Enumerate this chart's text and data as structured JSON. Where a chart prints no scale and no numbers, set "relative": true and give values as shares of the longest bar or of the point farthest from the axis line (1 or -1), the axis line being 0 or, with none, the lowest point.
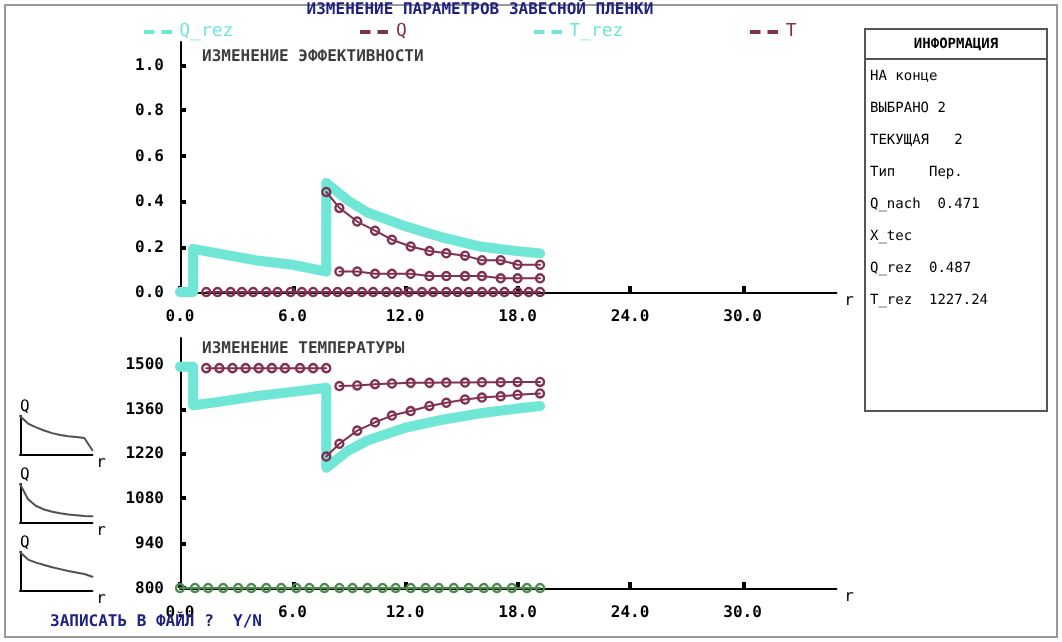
{
  "chart_data": [
    {
      "type": "line",
      "title": "ИЗМЕНЕНИЕ ПАРАМЕТРОВ ЗАВЕСНОЙ ПЛЕНКИ",
      "subtitle": "ИЗМЕНЕНИЕ ЭФФЕКТИВНОСТИ",
      "xlabel": "r",
      "legend": "top",
      "marker": "circle",
      "grid": false,
      "xlim": [
        0,
        35
      ],
      "xticks": [
        {
          "value": 0,
          "label": "0.0"
        },
        {
          "value": 6,
          "label": "6.0"
        },
        {
          "value": 12,
          "label": "12.0"
        },
        {
          "value": 18,
          "label": "18.0"
        },
        {
          "value": 24,
          "label": "24.0"
        },
        {
          "value": 30,
          "label": "30.0"
        }
      ],
      "ylim": [
        0,
        1.1
      ],
      "yticks": [
        {
          "value": 0,
          "label": "0.0"
        },
        {
          "value": 0.2,
          "label": "0.2"
        },
        {
          "value": 0.4,
          "label": "0.4"
        },
        {
          "value": 0.6,
          "label": "0.6"
        },
        {
          "value": 0.8,
          "label": "0.8"
        },
        {
          "value": 1,
          "label": "1.0"
        }
      ],
      "series": [
        {
          "name": "Q_rez",
          "color": "#70e6d6",
          "marker": "none",
          "x": [
            0,
            0.7,
            0.7,
            2,
            4,
            6,
            7.8,
            7.8,
            9,
            10,
            12,
            14,
            16,
            18,
            19.2
          ],
          "values": [
            0,
            0,
            0.19,
            0.17,
            0.14,
            0.12,
            0.09,
            0.48,
            0.4,
            0.35,
            0.29,
            0.24,
            0.2,
            0.18,
            0.17
          ]
        },
        {
          "name": "Q",
          "color": "#803050",
          "x": [
            7.8,
            8.5,
            9.45,
            10.4,
            11.3,
            12.3,
            13.3,
            14.2,
            15.2,
            16.1,
            17.1,
            18,
            19.2
          ],
          "values": [
            0.44,
            0.37,
            0.31,
            0.27,
            0.23,
            0.2,
            0.18,
            0.17,
            0.16,
            0.14,
            0.14,
            0.12,
            0.12
          ]
        },
        {
          "color": "#803050",
          "x": [
            8.5,
            9.45,
            10.4,
            11.3,
            12.3,
            13.3,
            14.2,
            15.2,
            16.1,
            17.1,
            18,
            19.2
          ],
          "values": [
            0.09,
            0.09,
            0.08,
            0.08,
            0.08,
            0.07,
            0.07,
            0.07,
            0.07,
            0.06,
            0.06,
            0.06
          ]
        },
        {
          "color": "#803050",
          "x": [
            1.4,
            2.0,
            2.7,
            3.3,
            3.9,
            4.6,
            5.2,
            5.9,
            6.5,
            7.1,
            7.8,
            8.4,
            9.0,
            9.7,
            10.3,
            11.0,
            11.6,
            12.2,
            12.9,
            13.5,
            14.2,
            14.8,
            15.4,
            16.1,
            16.7,
            17.3,
            18.0,
            18.6,
            19.2
          ],
          "values": [
            0,
            0,
            0,
            0,
            0,
            0,
            0,
            0,
            0,
            0,
            0,
            0,
            0,
            0,
            0,
            0,
            0,
            0,
            0,
            0,
            0,
            0,
            0,
            0,
            0,
            0,
            0,
            0,
            0
          ]
        }
      ]
    },
    {
      "type": "line",
      "title": "ИЗМЕНЕНИЕ ТЕМПЕРАТУРЫ",
      "xlabel": "r",
      "legend": "top",
      "marker": "circle",
      "grid": false,
      "annotations": [
        "ЗАПИСАТЬ В ФАЙЛ ?  Y/N"
      ],
      "xlim": [
        0,
        35
      ],
      "xticks": [
        {
          "value": 0,
          "label": "0.0"
        },
        {
          "value": 6,
          "label": "6.0"
        },
        {
          "value": 12,
          "label": "12.0"
        },
        {
          "value": 18,
          "label": "18.0"
        },
        {
          "value": 24,
          "label": "24.0"
        },
        {
          "value": 30,
          "label": "30.0"
        }
      ],
      "ylim": [
        800,
        1580
      ],
      "yticks": [
        800,
        940,
        1080,
        1220,
        1360,
        1500
      ],
      "series": [
        {
          "name": "T_rez",
          "color": "#70e6d6",
          "marker": "none",
          "x": [
            0,
            0.7,
            0.7,
            2,
            4,
            6,
            7.8,
            7.8,
            9,
            10,
            12,
            14,
            16,
            18,
            19.2
          ],
          "values": [
            1490,
            1490,
            1370,
            1380,
            1398,
            1412,
            1425,
            1175,
            1230,
            1260,
            1300,
            1325,
            1345,
            1360,
            1368
          ]
        },
        {
          "name": "T",
          "color": "#803050",
          "x": [
            1.4,
            2.1,
            2.8,
            3.5,
            4.2,
            4.9,
            5.6,
            6.4,
            7.1,
            7.8
          ],
          "values": [
            1486,
            1486,
            1486,
            1486,
            1486,
            1486,
            1486,
            1486,
            1486,
            1486
          ]
        },
        {
          "color": "#803050",
          "x": [
            8.5,
            9.45,
            10.4,
            11.3,
            12.3,
            13.3,
            14.2,
            15.2,
            16.1,
            17.1,
            18,
            19.2
          ],
          "values": [
            1430,
            1432,
            1436,
            1438,
            1440,
            1440,
            1441,
            1441,
            1442,
            1442,
            1443,
            1443
          ]
        },
        {
          "color": "#803050",
          "x": [
            7.8,
            8.5,
            9.45,
            10.4,
            11.3,
            12.3,
            13.3,
            14.2,
            15.2,
            16.1,
            17.1,
            18,
            19.2
          ],
          "values": [
            1210,
            1250,
            1291,
            1317,
            1338,
            1352,
            1368,
            1378,
            1388,
            1394,
            1398,
            1403,
            1407
          ]
        },
        {
          "color": "#4a8a4a",
          "x": [
            0,
            0.8,
            1.5,
            2.3,
            3.1,
            3.8,
            4.6,
            5.4,
            6.2,
            6.9,
            7.7,
            8.5,
            9.2,
            10,
            10.8,
            11.5,
            12.3,
            13.1,
            13.8,
            14.6,
            15.4,
            16.2,
            16.9,
            17.7,
            18.5,
            19.2
          ],
          "values": [
            800,
            800,
            800,
            800,
            800,
            800,
            800,
            800,
            800,
            800,
            800,
            800,
            800,
            800,
            800,
            800,
            800,
            800,
            800,
            800,
            800,
            800,
            800,
            800,
            800,
            800
          ]
        }
      ]
    },
    {
      "type": "other",
      "title": "ИНФОРМАЦИЯ",
      "annotations": [
        "НА конце",
        "ВЫБРАНО 2",
        "ТЕКУЩАЯ   2",
        "Тип    Пер.",
        "Q_nach  0.471",
        "X_tec",
        "Q_rez  0.487",
        "T_rez  1227.24"
      ]
    },
    {
      "type": "line",
      "relative": true,
      "marker": "none",
      "xlabel": "r",
      "ylabel": "Q",
      "categories": [
        null,
        null,
        null,
        null,
        null,
        null,
        null,
        null,
        null,
        null
      ],
      "series": [
        {
          "color": "#505050",
          "values": [
            1,
            0.8,
            0.7,
            0.62,
            0.55,
            0.5,
            0.47,
            0.45,
            0.42,
            0.1
          ]
        }
      ]
    },
    {
      "type": "line",
      "relative": true,
      "marker": "none",
      "xlabel": "r",
      "ylabel": "Q",
      "categories": [
        null,
        null,
        null,
        null,
        null,
        null,
        null,
        null,
        null,
        null
      ],
      "series": [
        {
          "color": "#505050",
          "values": [
            1,
            0.6,
            0.42,
            0.33,
            0.27,
            0.23,
            0.2,
            0.18,
            0.16,
            0.15
          ]
        }
      ]
    },
    {
      "type": "line",
      "relative": true,
      "marker": "none",
      "xlabel": "r",
      "ylabel": "Q",
      "categories": [
        null,
        null,
        null,
        null,
        null,
        null,
        null,
        null,
        null,
        null
      ],
      "series": [
        {
          "color": "#505050",
          "values": [
            1,
            0.8,
            0.72,
            0.66,
            0.6,
            0.55,
            0.5,
            0.46,
            0.42,
            0.35
          ]
        }
      ]
    }
  ]
}
